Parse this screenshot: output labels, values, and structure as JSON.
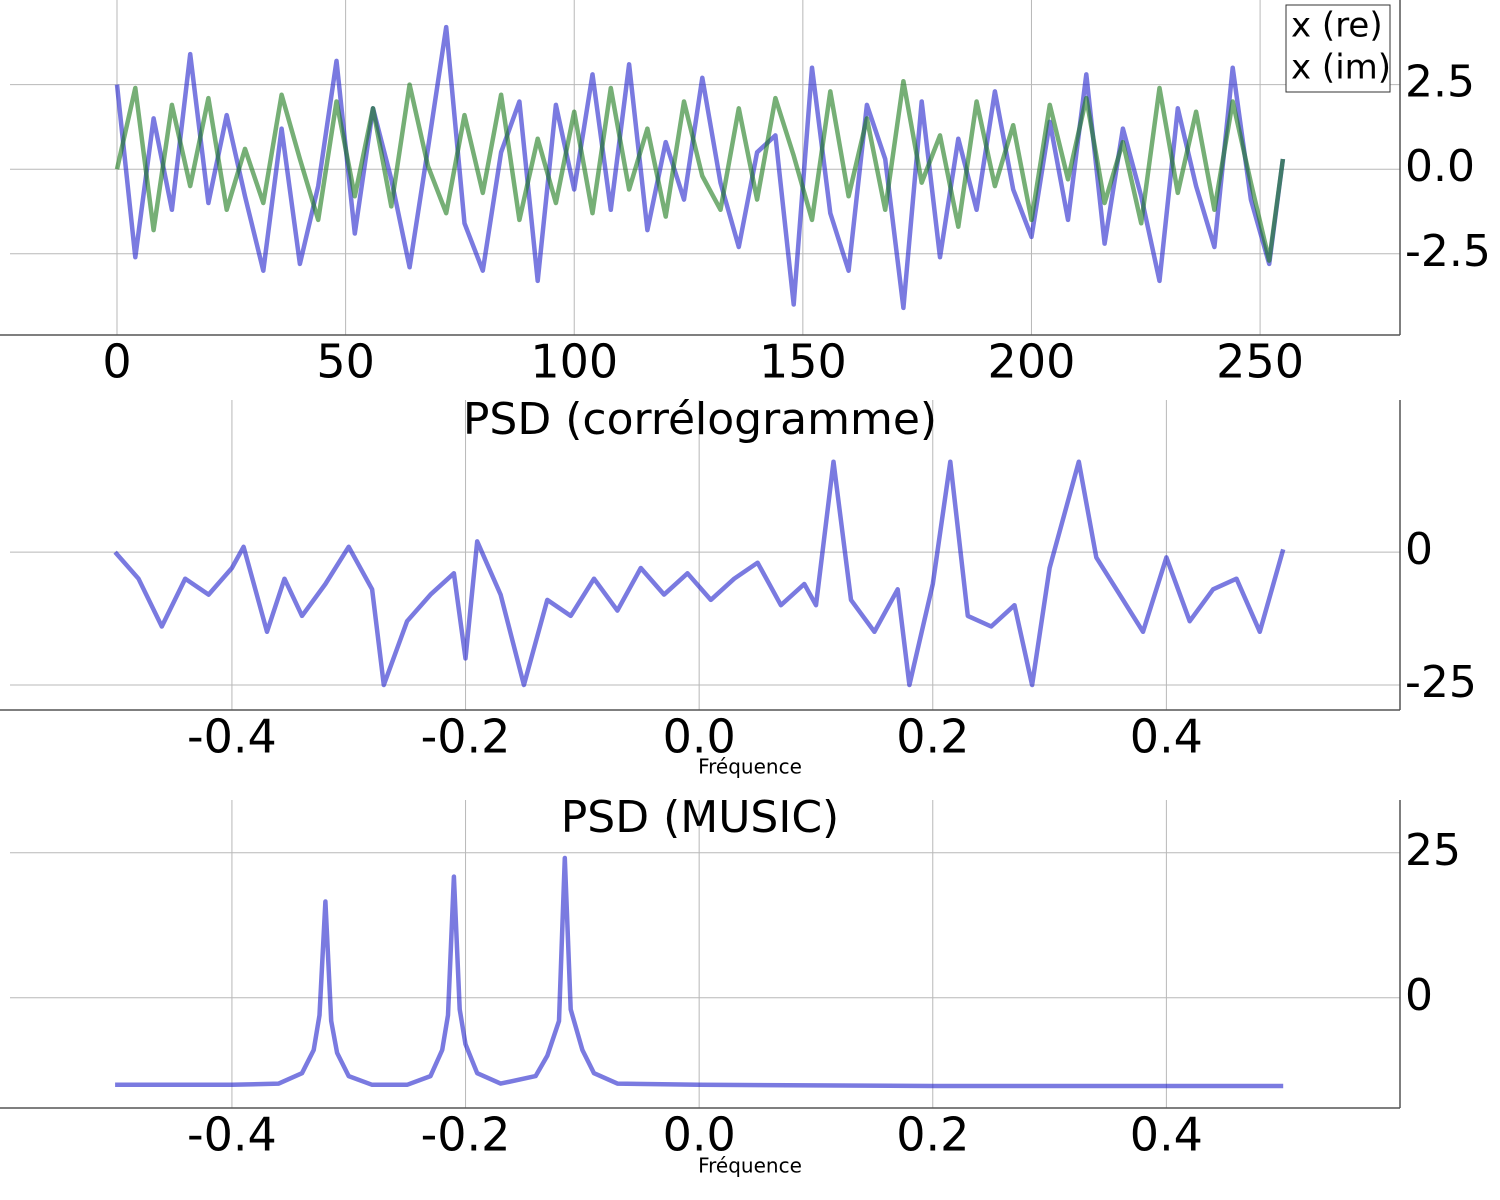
{
  "chart_data": [
    {
      "type": "line",
      "x": [
        0,
        4,
        8,
        12,
        16,
        20,
        24,
        28,
        32,
        36,
        40,
        44,
        48,
        52,
        56,
        60,
        64,
        68,
        72,
        76,
        80,
        84,
        88,
        92,
        96,
        100,
        104,
        108,
        112,
        116,
        120,
        124,
        128,
        132,
        136,
        140,
        144,
        148,
        152,
        156,
        160,
        164,
        168,
        172,
        176,
        180,
        184,
        188,
        192,
        196,
        200,
        204,
        208,
        212,
        216,
        220,
        224,
        228,
        232,
        236,
        240,
        244,
        248,
        252,
        255
      ],
      "series": [
        {
          "name": "x (re)",
          "color": "#2222cc",
          "values": [
            2.5,
            -2.6,
            1.5,
            -1.2,
            3.4,
            -1.0,
            1.6,
            -0.8,
            -3.0,
            1.2,
            -2.8,
            -0.5,
            3.2,
            -1.9,
            1.8,
            -0.3,
            -2.9,
            0.6,
            4.2,
            -1.6,
            -3.0,
            0.5,
            2.0,
            -3.3,
            1.9,
            -0.6,
            2.8,
            -1.2,
            3.1,
            -1.8,
            0.8,
            -0.9,
            2.7,
            -0.4,
            -2.3,
            0.5,
            1.0,
            -4.0,
            3.0,
            -1.3,
            -3.0,
            1.9,
            0.3,
            -4.1,
            2.0,
            -2.6,
            0.9,
            -1.2,
            2.3,
            -0.6,
            -2.0,
            1.4,
            -1.5,
            2.8,
            -2.2,
            1.2,
            -0.8,
            -3.3,
            1.8,
            -0.5,
            -2.3,
            3.0,
            -0.9,
            -2.8,
            0.3
          ]
        },
        {
          "name": "x (im)",
          "color": "#1a7a1a",
          "values": [
            0.0,
            2.4,
            -1.8,
            1.9,
            -0.5,
            2.1,
            -1.2,
            0.6,
            -1.0,
            2.2,
            0.3,
            -1.5,
            2.0,
            -0.8,
            1.8,
            -1.1,
            2.5,
            0.1,
            -1.3,
            1.6,
            -0.7,
            2.2,
            -1.5,
            0.9,
            -1.0,
            1.7,
            -1.3,
            2.4,
            -0.6,
            1.2,
            -1.4,
            2.0,
            -0.2,
            -1.2,
            1.8,
            -0.9,
            2.1,
            0.4,
            -1.5,
            2.3,
            -0.8,
            1.5,
            -1.2,
            2.6,
            -0.4,
            1.0,
            -1.7,
            2.0,
            -0.5,
            1.3,
            -1.5,
            1.9,
            -0.3,
            2.1,
            -1.0,
            0.8,
            -1.6,
            2.4,
            -0.7,
            1.7,
            -1.2,
            2.0,
            -0.4,
            -2.7,
            0.3
          ]
        }
      ],
      "xlim": [
        -23.4,
        280.6
      ],
      "ylim": [
        -4.9,
        5.0
      ],
      "xticks": [
        0,
        50,
        100,
        150,
        200,
        250
      ],
      "yticks": [
        -2.5,
        {
          "value": 0,
          "label": "0.0"
        },
        2.5
      ],
      "grid": true,
      "legend": "upper right"
    },
    {
      "type": "line",
      "title": "PSD (corrélogramme)",
      "xlabel": "Fréquence",
      "x": [
        -0.5,
        -0.48,
        -0.46,
        -0.44,
        -0.42,
        -0.4,
        -0.39,
        -0.37,
        -0.355,
        -0.34,
        -0.32,
        -0.3,
        -0.28,
        -0.27,
        -0.25,
        -0.23,
        -0.21,
        -0.2,
        -0.19,
        -0.17,
        -0.15,
        -0.13,
        -0.11,
        -0.09,
        -0.07,
        -0.05,
        -0.03,
        -0.01,
        0.01,
        0.03,
        0.05,
        0.07,
        0.09,
        0.1,
        0.115,
        0.13,
        0.15,
        0.17,
        0.18,
        0.2,
        0.215,
        0.23,
        0.25,
        0.27,
        0.285,
        0.3,
        0.325,
        0.34,
        0.36,
        0.38,
        0.4,
        0.42,
        0.44,
        0.46,
        0.48,
        0.5
      ],
      "series": [
        {
          "color": "#2222cc",
          "values": [
            0,
            -5,
            -14,
            -5,
            -8,
            -3,
            1,
            -15,
            -5,
            -12,
            -6,
            1,
            -7,
            -25,
            -13,
            -8,
            -4,
            -20,
            2,
            -8,
            -25,
            -9,
            -12,
            -5,
            -11,
            -3,
            -8,
            -4,
            -9,
            -5,
            -2,
            -10,
            -6,
            -10,
            17,
            -9,
            -15,
            -7,
            -25,
            -6,
            17,
            -12,
            -14,
            -10,
            -25,
            -3,
            17,
            -1,
            -8,
            -15,
            -1,
            -13,
            -7,
            -5,
            -15,
            0.5
          ]
        }
      ],
      "xlim": [
        -0.59,
        0.6
      ],
      "ylim": [
        -29.7,
        28.6
      ],
      "xticks": [
        -0.4,
        -0.2,
        {
          "value": 0,
          "label": "0.0"
        },
        0.2,
        0.4
      ],
      "yticks": [
        -25,
        0
      ],
      "grid": true
    },
    {
      "type": "line",
      "title": "PSD (MUSIC)",
      "xlabel": "Fréquence",
      "x": [
        -0.5,
        -0.4,
        -0.36,
        -0.34,
        -0.33,
        -0.325,
        -0.32,
        -0.315,
        -0.31,
        -0.3,
        -0.28,
        -0.25,
        -0.23,
        -0.22,
        -0.215,
        -0.21,
        -0.205,
        -0.2,
        -0.19,
        -0.17,
        -0.14,
        -0.13,
        -0.12,
        -0.115,
        -0.11,
        -0.1,
        -0.09,
        -0.07,
        0,
        0.2,
        0.4,
        0.5
      ],
      "series": [
        {
          "color": "#2222cc",
          "values": [
            -15,
            -15,
            -14.8,
            -13,
            -9,
            -3,
            16.6,
            -4,
            -9.5,
            -13.5,
            -15,
            -15,
            -13.5,
            -9,
            -3,
            20.9,
            -2,
            -8,
            -13,
            -14.8,
            -13.5,
            -10,
            -4,
            24.1,
            -2,
            -9,
            -13,
            -14.8,
            -15,
            -15.2,
            -15.2,
            -15.2
          ]
        }
      ],
      "xlim": [
        -0.59,
        0.6
      ],
      "ylim": [
        -19,
        34.1
      ],
      "xticks": [
        -0.4,
        -0.2,
        {
          "value": 0,
          "label": "0.0"
        },
        0.2,
        0.4
      ],
      "yticks": [
        0,
        25
      ],
      "grid": true
    }
  ]
}
